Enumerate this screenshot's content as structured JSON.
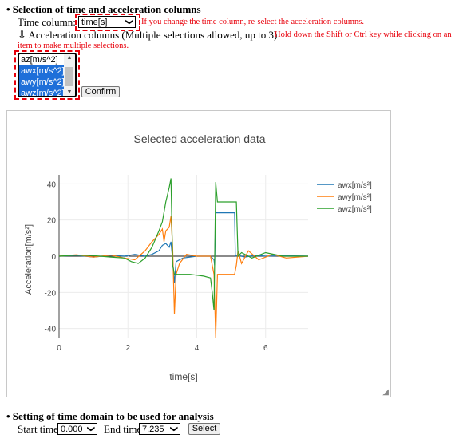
{
  "section1": {
    "heading": "• Selection of time and acceleration columns",
    "time_label": "Time column:",
    "time_value": "time[s]",
    "time_note": "If you change the time column, re-select the acceleration columns.",
    "accel_label": "⇩ Acceleration columns (Multiple selections allowed, up to 3)",
    "accel_note_1": "Hold down the Shift or Ctrl key while clicking on an",
    "accel_note_2": "item to make multiple selections.",
    "options": [
      {
        "label": "az[m/s^2]",
        "selected": false
      },
      {
        "label": "awx[m/s^2]",
        "selected": true
      },
      {
        "label": "awy[m/s^2]",
        "selected": true
      },
      {
        "label": "awz[m/s^2]",
        "selected": true
      }
    ],
    "confirm_label": "Confirm"
  },
  "chart_data": {
    "type": "line",
    "title": "Selected acceleration data",
    "xlabel": "time[s]",
    "ylabel": "Acceleration[m/s²]",
    "xlim": [
      0,
      7.235
    ],
    "ylim": [
      -45,
      45
    ],
    "xticks": [
      0,
      2,
      4,
      6
    ],
    "yticks": [
      -40,
      -20,
      0,
      20,
      40
    ],
    "grid": true,
    "legend": "top-right",
    "series": [
      {
        "name": "awx[m/s²]",
        "color": "#1f77b4",
        "x": [
          0,
          0.5,
          1.0,
          1.5,
          1.9,
          2.2,
          2.5,
          2.7,
          2.9,
          3.0,
          3.1,
          3.2,
          3.25,
          3.3,
          3.35,
          3.4,
          3.6,
          4.0,
          4.4,
          4.5,
          4.52,
          4.55,
          4.6,
          5.0,
          5.1,
          5.12,
          5.2,
          5.4,
          5.7,
          6.0,
          6.5,
          7.235
        ],
        "y": [
          0,
          0.5,
          -0.5,
          0.5,
          0,
          1,
          0,
          1,
          3,
          6,
          7,
          5,
          8,
          -2,
          -15,
          -3,
          -1,
          0,
          0,
          -2,
          -5,
          24,
          24,
          24,
          24,
          0,
          0.5,
          -0.5,
          0.5,
          0,
          0.3,
          0
        ]
      },
      {
        "name": "awy[m/s²]",
        "color": "#ff7f0e",
        "x": [
          0,
          0.5,
          1.0,
          1.5,
          1.9,
          2.2,
          2.5,
          2.7,
          2.9,
          3.0,
          3.05,
          3.1,
          3.2,
          3.25,
          3.3,
          3.35,
          3.4,
          3.5,
          3.7,
          4.0,
          4.4,
          4.5,
          4.55,
          4.6,
          4.8,
          5.1,
          5.15,
          5.2,
          5.3,
          5.5,
          5.8,
          6.2,
          6.6,
          7.235
        ],
        "y": [
          0,
          0.8,
          -0.5,
          0.6,
          -1,
          -2,
          3,
          8,
          12,
          15,
          8,
          14,
          16,
          22,
          5,
          -32,
          -10,
          -4,
          1,
          0,
          0,
          -10,
          -45,
          -10,
          -10,
          -10,
          -5,
          3,
          -4,
          3,
          -2,
          1,
          -1,
          0
        ]
      },
      {
        "name": "awz[m/s²]",
        "color": "#2ca02c",
        "x": [
          0,
          0.5,
          1.0,
          1.5,
          1.9,
          2.1,
          2.3,
          2.5,
          2.7,
          2.9,
          3.0,
          3.1,
          3.2,
          3.25,
          3.3,
          3.35,
          3.4,
          3.5,
          3.8,
          4.2,
          4.4,
          4.45,
          4.5,
          4.55,
          4.6,
          4.7,
          5.0,
          5.15,
          5.2,
          5.3,
          5.6,
          6.0,
          6.5,
          7.235
        ],
        "y": [
          0,
          0.6,
          0.3,
          -0.5,
          -1,
          -3,
          -4,
          -1,
          5,
          14,
          19,
          30,
          38,
          43,
          -5,
          -10,
          -10,
          -10,
          -10,
          -11,
          -12,
          -20,
          -30,
          41,
          30,
          30,
          30,
          30,
          0,
          2,
          -1,
          2,
          0,
          0
        ]
      }
    ]
  },
  "section2": {
    "heading": "• Setting of time domain to be used for analysis",
    "start_label": "Start time",
    "start_value": "0.000",
    "end_label": "End time",
    "end_value": "7.235",
    "select_label": "Select"
  }
}
